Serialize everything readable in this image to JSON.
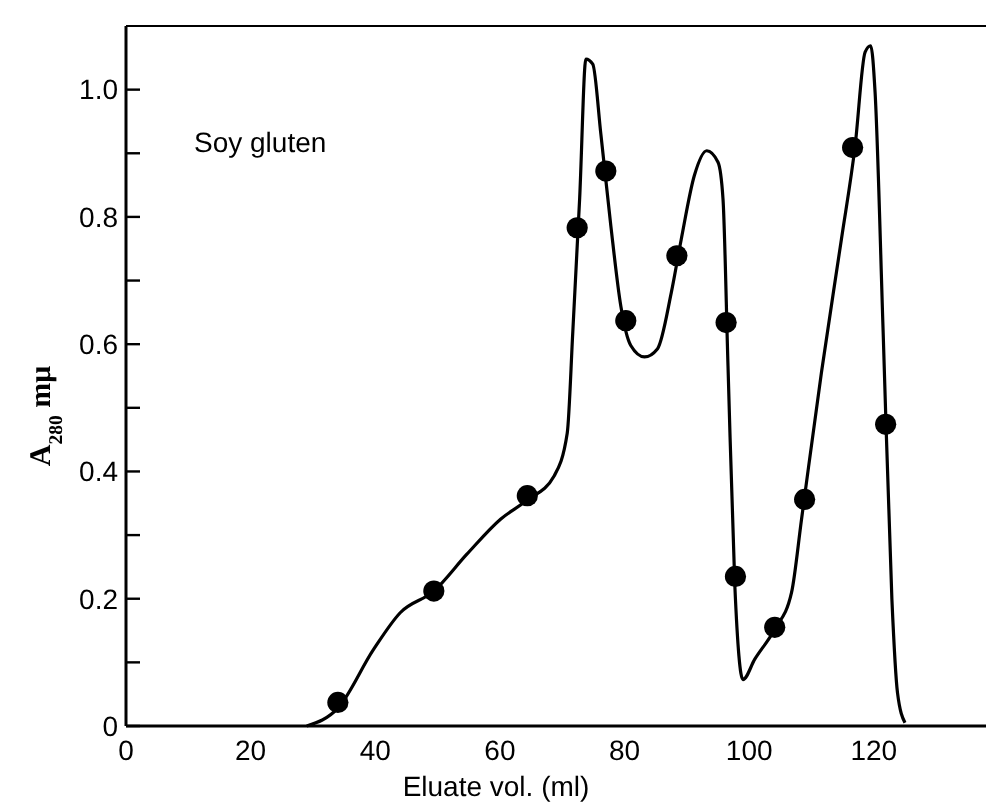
{
  "chart_data": {
    "type": "line",
    "xlabel": "Eluate vol. (ml)",
    "ylabel": "A$_{280}$ mμ",
    "annotations": [
      "Soy gluten"
    ],
    "xlim": [
      0,
      138
    ],
    "ylim": [
      0,
      1.1
    ],
    "xticks": [
      0,
      20,
      40,
      60,
      80,
      100,
      120
    ],
    "yticks": [
      0,
      {
        "value": 0.1,
        "label": null
      },
      {
        "value": 0.2,
        "label": "0.2"
      },
      {
        "value": 0.3,
        "label": null
      },
      {
        "value": 0.4,
        "label": "0.4"
      },
      {
        "value": 0.5,
        "label": null
      },
      {
        "value": 0.6,
        "label": "0.6"
      },
      {
        "value": 0.7,
        "label": null
      },
      {
        "value": 0.8,
        "label": "0.8"
      },
      {
        "value": 0.9,
        "label": null
      },
      {
        "value": 1.0,
        "label": "1.0"
      }
    ],
    "grid": false,
    "series": [
      {
        "color": "#000000",
        "marker": "none",
        "line_style": "solid",
        "x": [
          29,
          34,
          39.7,
          44,
          49.4,
          54.7,
          60.1,
          64.4,
          68.7,
          70.8,
          71.7,
          72.8,
          73.8,
          74.9,
          76.2,
          77.8,
          79.4,
          81,
          83.2,
          85.3,
          87.5,
          89.1,
          91.2,
          93.2,
          95,
          95.8,
          96.6,
          97.7,
          99,
          100.9,
          104.1,
          106.8,
          108.4,
          111.6,
          114.8,
          117,
          118.6,
          119.5,
          120.2,
          121.5,
          122.9,
          123.8,
          125
        ],
        "values": [
          0,
          0.028,
          0.12,
          0.178,
          0.212,
          0.27,
          0.325,
          0.355,
          0.393,
          0.46,
          0.62,
          0.83,
          1.048,
          1.04,
          0.93,
          0.786,
          0.66,
          0.598,
          0.58,
          0.593,
          0.681,
          0.765,
          0.865,
          0.904,
          0.886,
          0.828,
          0.566,
          0.22,
          0.073,
          0.105,
          0.152,
          0.21,
          0.325,
          0.556,
          0.765,
          0.912,
          1.059,
          1.069,
          0.996,
          0.618,
          0.199,
          0.052,
          0.005
        ]
      },
      {
        "type": "scatter",
        "color": "#000000",
        "marker": "circle",
        "x": [
          34,
          49.4,
          64.4,
          72.4,
          77,
          80.2,
          88.4,
          96.3,
          97.8,
          104.1,
          108.9,
          116.6,
          121.9
        ],
        "values": [
          0.037,
          0.212,
          0.362,
          0.783,
          0.872,
          0.637,
          0.739,
          0.634,
          0.235,
          0.155,
          0.356,
          0.909,
          0.474
        ]
      }
    ]
  }
}
